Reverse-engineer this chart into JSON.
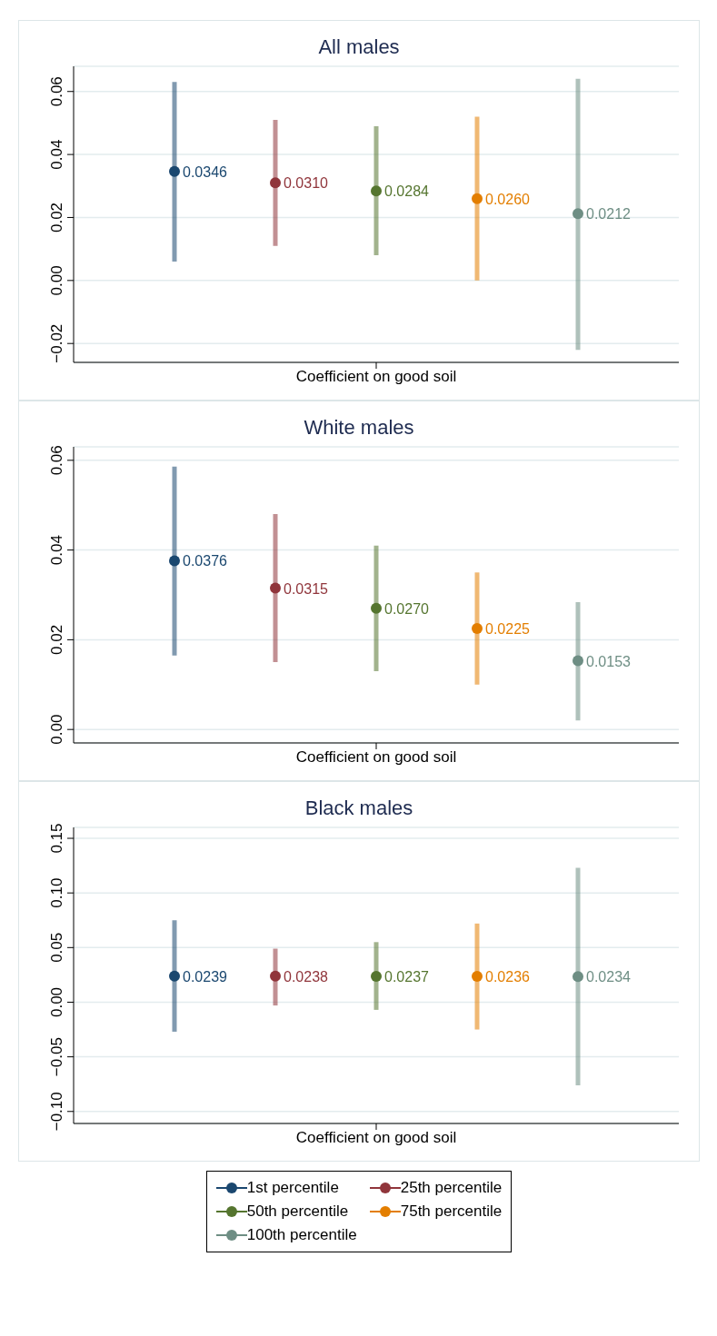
{
  "chart_data": [
    {
      "type": "scatter",
      "title": "All males",
      "categories": [
        "Coefficient on good soil"
      ],
      "ylim": [
        -0.026,
        0.068
      ],
      "yticks": [
        {
          "value": -0.02,
          "label": "−0.02"
        },
        {
          "value": 0,
          "label": "0.00"
        },
        {
          "value": 0.02,
          "label": "0.02"
        },
        {
          "value": 0.04,
          "label": "0.04"
        },
        {
          "value": 0.06,
          "label": "0.06"
        }
      ],
      "grid": "y",
      "marker": "circle",
      "legend": "bottom",
      "series": [
        {
          "name": "1st percentile",
          "color": "#1a476f",
          "values": [
            0.0346
          ],
          "value_labels": [
            "0.0346"
          ],
          "errors": [
            [
              0.006,
              0.063
            ]
          ]
        },
        {
          "name": "25th percentile",
          "color": "#90353b",
          "values": [
            0.031
          ],
          "value_labels": [
            "0.0310"
          ],
          "errors": [
            [
              0.011,
              0.051
            ]
          ]
        },
        {
          "name": "50th percentile",
          "color": "#55752f",
          "values": [
            0.0284
          ],
          "value_labels": [
            "0.0284"
          ],
          "errors": [
            [
              0.008,
              0.049
            ]
          ]
        },
        {
          "name": "75th percentile",
          "color": "#e37e00",
          "values": [
            0.026
          ],
          "value_labels": [
            "0.0260"
          ],
          "errors": [
            [
              0.0,
              0.052
            ]
          ]
        },
        {
          "name": "100th percentile",
          "color": "#6e8e84",
          "values": [
            0.0212
          ],
          "value_labels": [
            "0.0212"
          ],
          "errors": [
            [
              -0.022,
              0.064
            ]
          ]
        }
      ]
    },
    {
      "type": "scatter",
      "title": "White males",
      "categories": [
        "Coefficient on good soil"
      ],
      "ylim": [
        -0.003,
        0.063
      ],
      "yticks": [
        {
          "value": 0,
          "label": "0.00"
        },
        {
          "value": 0.02,
          "label": "0.02"
        },
        {
          "value": 0.04,
          "label": "0.04"
        },
        {
          "value": 0.06,
          "label": "0.06"
        }
      ],
      "grid": "y",
      "marker": "circle",
      "series": [
        {
          "color": "#1a476f",
          "values": [
            0.0376
          ],
          "value_labels": [
            "0.0376"
          ],
          "errors": [
            [
              0.0165,
              0.0586
            ]
          ]
        },
        {
          "color": "#90353b",
          "values": [
            0.0315
          ],
          "value_labels": [
            "0.0315"
          ],
          "errors": [
            [
              0.015,
              0.048
            ]
          ]
        },
        {
          "color": "#55752f",
          "values": [
            0.027
          ],
          "value_labels": [
            "0.0270"
          ],
          "errors": [
            [
              0.013,
              0.041
            ]
          ]
        },
        {
          "color": "#e37e00",
          "values": [
            0.0225
          ],
          "value_labels": [
            "0.0225"
          ],
          "errors": [
            [
              0.01,
              0.035
            ]
          ]
        },
        {
          "color": "#6e8e84",
          "values": [
            0.0153
          ],
          "value_labels": [
            "0.0153"
          ],
          "errors": [
            [
              0.002,
              0.0284
            ]
          ]
        }
      ]
    },
    {
      "type": "scatter",
      "title": "Black males",
      "categories": [
        "Coefficient on good soil"
      ],
      "ylim": [
        -0.111,
        0.16
      ],
      "yticks": [
        {
          "value": -0.1,
          "label": "−0.10"
        },
        {
          "value": -0.05,
          "label": "−0.05"
        },
        {
          "value": 0,
          "label": "0.00"
        },
        {
          "value": 0.05,
          "label": "0.05"
        },
        {
          "value": 0.1,
          "label": "0.10"
        },
        {
          "value": 0.15,
          "label": "0.15"
        }
      ],
      "grid": "y",
      "marker": "circle",
      "series": [
        {
          "color": "#1a476f",
          "values": [
            0.0239
          ],
          "value_labels": [
            "0.0239"
          ],
          "errors": [
            [
              -0.027,
              0.075
            ]
          ]
        },
        {
          "color": "#90353b",
          "values": [
            0.0238
          ],
          "value_labels": [
            "0.0238"
          ],
          "errors": [
            [
              -0.003,
              0.049
            ]
          ]
        },
        {
          "color": "#55752f",
          "values": [
            0.0237
          ],
          "value_labels": [
            "0.0237"
          ],
          "errors": [
            [
              -0.007,
              0.055
            ]
          ]
        },
        {
          "color": "#e37e00",
          "values": [
            0.0236
          ],
          "value_labels": [
            "0.0236"
          ],
          "errors": [
            [
              -0.025,
              0.072
            ]
          ]
        },
        {
          "color": "#6e8e84",
          "values": [
            0.0234
          ],
          "value_labels": [
            "0.0234"
          ],
          "errors": [
            [
              -0.076,
              0.123
            ]
          ]
        }
      ]
    }
  ]
}
